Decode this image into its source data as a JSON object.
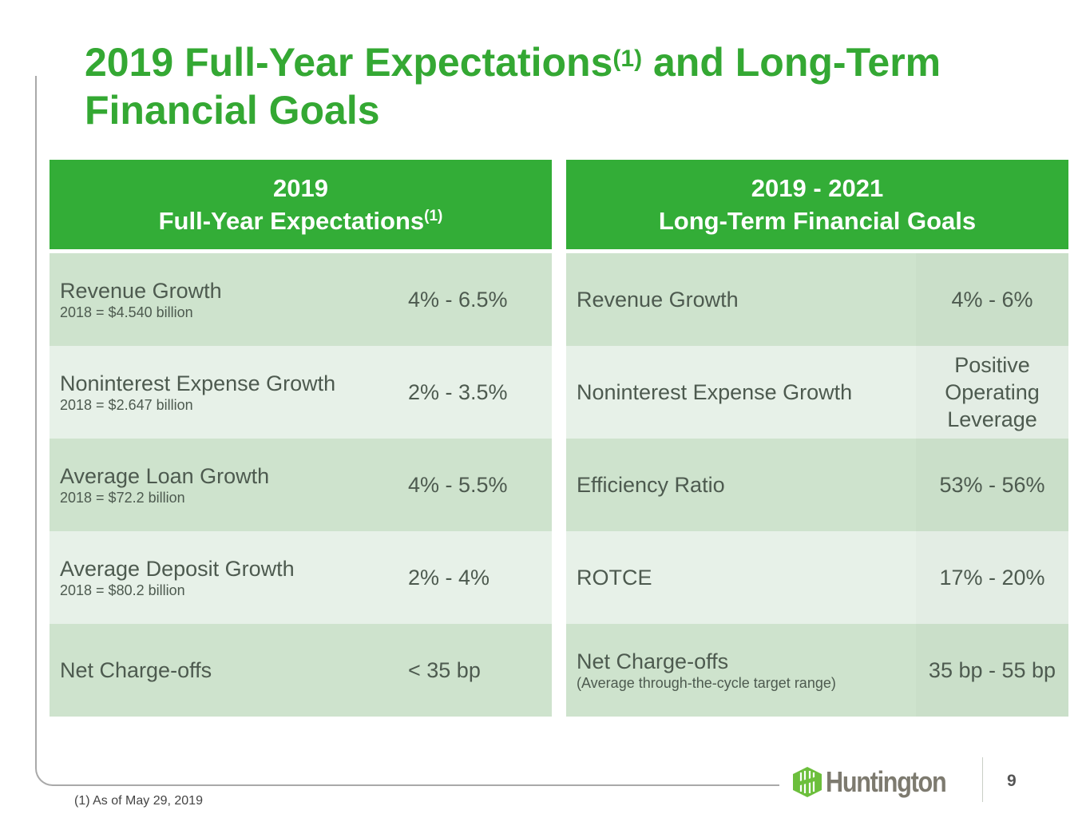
{
  "title": {
    "main": "2019 Full-Year Expectations",
    "sup": "(1)",
    "rest": " and Long-Term",
    "line2": "Financial Goals"
  },
  "left": {
    "header1": "2019",
    "header2": "Full-Year Expectations",
    "header_sup": "(1)",
    "rows": [
      {
        "label": "Revenue Growth",
        "sub": "2018 = $4.540 billion",
        "value": "4% - 6.5%"
      },
      {
        "label": "Noninterest Expense Growth",
        "sub": "2018 = $2.647 billion",
        "value": "2% - 3.5%"
      },
      {
        "label": "Average Loan Growth",
        "sub": "2018 = $72.2 billion",
        "value": "4% - 5.5%"
      },
      {
        "label": "Average Deposit Growth",
        "sub": "2018 = $80.2 billion",
        "value": "2% - 4%"
      },
      {
        "label": "Net Charge-offs",
        "sub": "",
        "value": "< 35 bp"
      }
    ]
  },
  "right": {
    "header1": "2019 - 2021",
    "header2": "Long-Term Financial Goals",
    "rows": [
      {
        "label": "Revenue Growth",
        "sub": "",
        "value": "4% - 6%"
      },
      {
        "label": "Noninterest Expense Growth",
        "sub": "",
        "value": "Positive Operating Leverage"
      },
      {
        "label": "Efficiency Ratio",
        "sub": "",
        "value": "53% - 56%"
      },
      {
        "label": "ROTCE",
        "sub": "",
        "value": "17% - 20%"
      },
      {
        "label": "Net Charge-offs",
        "sub": "(Average through-the-cycle target range)",
        "value": "35 bp - 55 bp"
      }
    ]
  },
  "footnote": "(1)  As of May 29, 2019",
  "logo": "Huntington",
  "page_number": "9"
}
